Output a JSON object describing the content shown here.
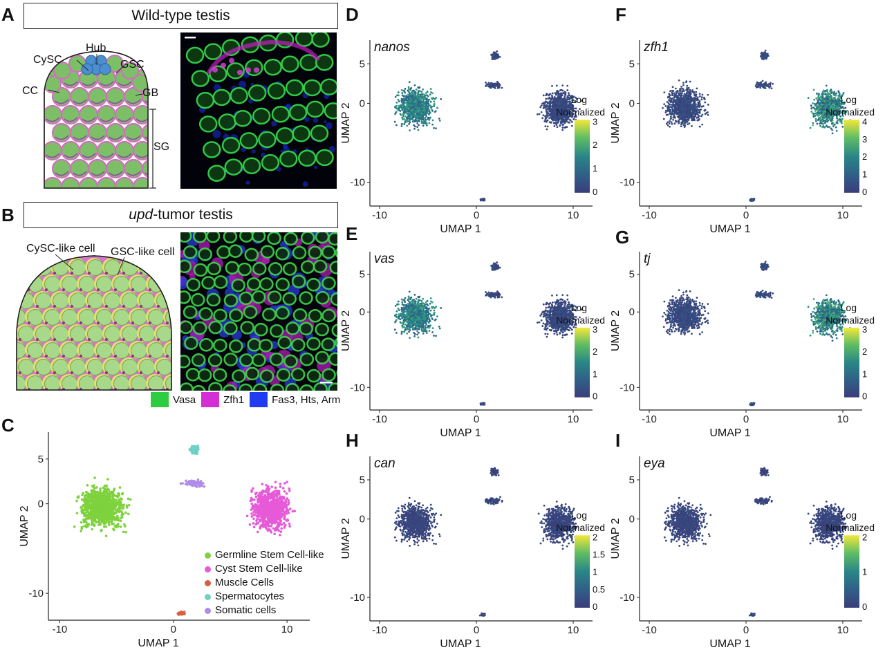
{
  "panel_labels": [
    "A",
    "B",
    "C",
    "D",
    "E",
    "F",
    "G",
    "H",
    "I"
  ],
  "panelA": {
    "title": "Wild-type testis",
    "annotations": {
      "hub": "Hub",
      "cysc": "CySC",
      "gsc": "GSC",
      "cc": "CC",
      "gb": "GB",
      "sg": "SG"
    }
  },
  "panelB": {
    "title_italic": "upd",
    "title_rest": "-tumor testis",
    "annotations": {
      "cysc_like": "CySC-like cell",
      "gsc_like": "GSC-like cell"
    },
    "stain_legend": [
      {
        "label": "Vasa",
        "color": "#2ecc40"
      },
      {
        "label": "Zfh1",
        "color": "#d42fd4"
      },
      {
        "label": "Fas3, Hts, Arm",
        "color": "#1f3cf0"
      }
    ]
  },
  "panelC": {
    "xlabel": "UMAP 1",
    "ylabel": "UMAP 2",
    "xticks": [
      "-10",
      "0",
      "10"
    ],
    "yticks": [
      "5",
      "0",
      "-10"
    ],
    "legend": [
      {
        "label": "Germline Stem Cell-like",
        "color": "#7ed23d"
      },
      {
        "label": "Cyst Stem Cell-like",
        "color": "#e65ad8"
      },
      {
        "label": "Muscle Cells",
        "color": "#d8603f"
      },
      {
        "label": "Spermatocytes",
        "color": "#6fd0c6"
      },
      {
        "label": "Somatic cells",
        "color": "#b08ce8"
      }
    ]
  },
  "chart_data": [
    {
      "type": "scatter",
      "panel": "C",
      "xlabel": "UMAP 1",
      "ylabel": "UMAP 2",
      "xlim": [
        -11,
        12
      ],
      "ylim": [
        -13,
        8
      ],
      "colored_by": "cluster"
    },
    {
      "type": "scatter",
      "panel": "D",
      "gene": "nanos",
      "xlabel": "UMAP 1",
      "ylabel": "UMAP 2",
      "legend_title": "Log Normalized",
      "scale_ticks": [
        "3",
        "2",
        "1",
        "0"
      ],
      "scale_max": 3,
      "high_cluster": "germline"
    },
    {
      "type": "scatter",
      "panel": "E",
      "gene": "vas",
      "xlabel": "UMAP 1",
      "ylabel": "UMAP 2",
      "legend_title": "Log Normalized",
      "scale_ticks": [
        "3",
        "2",
        "1",
        "0"
      ],
      "scale_max": 3,
      "high_cluster": "germline"
    },
    {
      "type": "scatter",
      "panel": "F",
      "gene": "zfh1",
      "xlabel": "UMAP 1",
      "ylabel": "UMAP 2",
      "legend_title": "Log Normalized",
      "scale_ticks": [
        "4",
        "3",
        "2",
        "1",
        "0"
      ],
      "scale_max": 4,
      "high_cluster": "cyst"
    },
    {
      "type": "scatter",
      "panel": "G",
      "gene": "tj",
      "xlabel": "UMAP 1",
      "ylabel": "UMAP 2",
      "legend_title": "Log Normalized",
      "scale_ticks": [
        "3",
        "2",
        "1",
        "0"
      ],
      "scale_max": 3,
      "high_cluster": "cyst"
    },
    {
      "type": "scatter",
      "panel": "H",
      "gene": "can",
      "xlabel": "UMAP 1",
      "ylabel": "UMAP 2",
      "legend_title": "Log Normalized",
      "scale_ticks": [
        "2",
        "1.5",
        "1",
        "0.5",
        "0"
      ],
      "scale_max": 2,
      "high_cluster": "none"
    },
    {
      "type": "scatter",
      "panel": "I",
      "gene": "eya",
      "xlabel": "UMAP 1",
      "ylabel": "UMAP 2",
      "legend_title": "Log Normalized",
      "scale_ticks": [
        "2",
        "1",
        "0"
      ],
      "scale_max": 2,
      "high_cluster": "none"
    }
  ],
  "umap_axes": {
    "xticks": [
      "-10",
      "0",
      "10"
    ],
    "yticks": [
      "5",
      "0",
      "-10"
    ]
  },
  "colors": {
    "low": "#3b3d7a",
    "mid": "#2a8f8a",
    "high": "#f2e73a",
    "gsc_cell": "#7dbf67",
    "hub": "#4b8fd1",
    "cyst": "#d06fbe",
    "tumor_bg": "#d179c6",
    "tumor_yellow": "#f0e46a"
  }
}
